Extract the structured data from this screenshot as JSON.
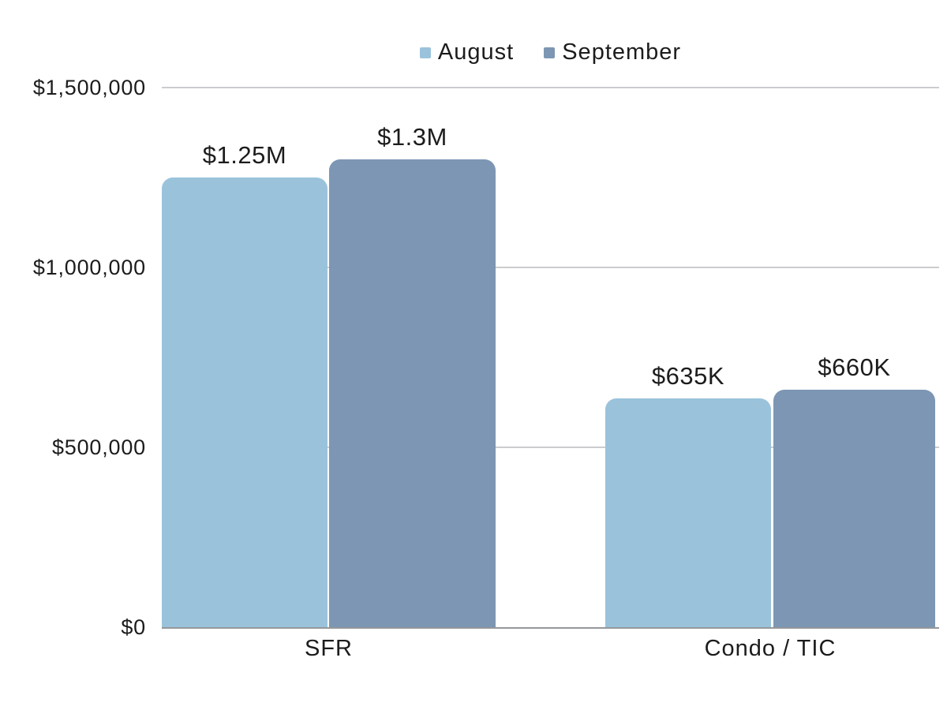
{
  "chart_data": {
    "type": "bar",
    "title": "",
    "categories": [
      "SFR",
      "Condo / TIC"
    ],
    "series": [
      {
        "name": "August",
        "color": "#9AC3DB",
        "values": [
          1250000,
          635000
        ],
        "value_labels": [
          "$1.25M",
          "$635K"
        ]
      },
      {
        "name": "September",
        "color": "#7D96B4",
        "values": [
          1300000,
          660000
        ],
        "value_labels": [
          "$1.3M",
          "$660K"
        ]
      }
    ],
    "yaxis": {
      "min": 0,
      "max": 1500000,
      "ticks": [
        {
          "value": 1500000,
          "label": "$1,500,000"
        },
        {
          "value": 1000000,
          "label": "$1,000,000"
        },
        {
          "value": 500000,
          "label": "$500,000"
        },
        {
          "value": 0,
          "label": "$0"
        }
      ]
    },
    "xlabel": "",
    "ylabel": "",
    "legend_position": "top",
    "grid": true
  },
  "colors": {
    "august": "#9AC3DB",
    "september": "#7D96B4",
    "gridline": "#CCCCCF",
    "baseline": "#96989B",
    "text": "#1C1C1C",
    "background": "#FFFFFF"
  }
}
